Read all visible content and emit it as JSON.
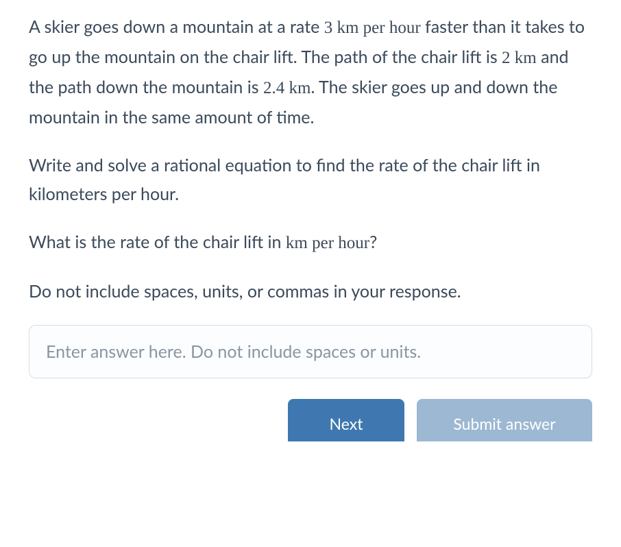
{
  "problem": {
    "paragraph1_parts": [
      "A skier goes down a mountain at a rate ",
      "3 km per hour",
      " faster than it takes to go up the mountain on the chair lift. The path of the chair lift is ",
      "2 km",
      " and the path down the mountain is ",
      "2.4 km",
      ". The skier goes up and down the mountain in the same amount of time."
    ],
    "paragraph2": "Write and solve a rational equation to find the rate of the chair lift in kilometers per hour.",
    "paragraph3_parts": [
      "What is the rate of the chair lift in ",
      "km per hour",
      "?"
    ],
    "paragraph4": "Do not include spaces, units, or commas in your response."
  },
  "input": {
    "placeholder": "Enter answer here. Do not include spaces or units.",
    "value": ""
  },
  "buttons": {
    "next": "Next",
    "submit": "Submit answer"
  },
  "colors": {
    "text": "#3b4a5a",
    "placeholder": "#8896a4",
    "input_border": "#d6dce2",
    "next_bg": "#3f78b0",
    "submit_bg": "#9cb8d2",
    "button_text": "#ffffff",
    "background": "#ffffff"
  },
  "typography": {
    "body_fontsize": 25,
    "body_lineheight": 1.68,
    "button_fontsize": 23,
    "math_font": "Georgia, Times New Roman, serif"
  }
}
